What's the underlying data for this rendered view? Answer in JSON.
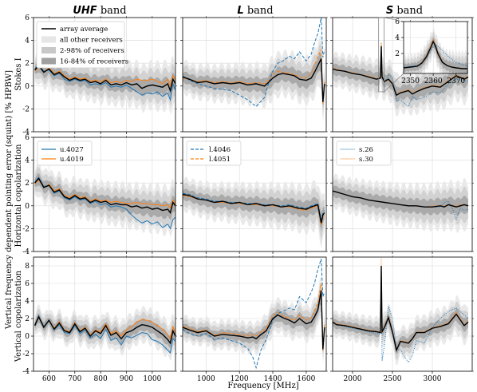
{
  "figure": {
    "ylabel_shared": "Vertical frequency dependent pointing error (squint) [% HPBW]",
    "xlabel": "Frequency [MHz]"
  },
  "chart_data": {
    "type": "line",
    "columns": [
      {
        "band_prefix": "UHF",
        "band_suffix": "band",
        "xlim": [
          540,
          1090
        ],
        "xticks": [
          600,
          700,
          800,
          900,
          1000
        ]
      },
      {
        "band_prefix": "L",
        "band_suffix": "band",
        "xlim": [
          860,
          1720
        ],
        "xticks": [
          1000,
          1200,
          1400,
          1600
        ]
      },
      {
        "band_prefix": "S",
        "band_suffix": "band",
        "xlim": [
          1750,
          3500
        ],
        "xticks": [
          2000,
          2500,
          3000
        ]
      }
    ],
    "rows": [
      {
        "ylabel": "Stokes I",
        "ylim": [
          -4,
          6
        ],
        "yticks": [
          -4,
          -2,
          0,
          2,
          4,
          6
        ]
      },
      {
        "ylabel": "Horizontal copolarization",
        "ylim": [
          -4,
          6
        ],
        "yticks": [
          -4,
          -2,
          0,
          2,
          4,
          6
        ]
      },
      {
        "ylabel": "Vertical copolarization",
        "ylim": [
          -4,
          9
        ],
        "yticks": [
          -4,
          -2,
          0,
          2,
          4,
          6,
          8
        ]
      }
    ],
    "legend_main": [
      {
        "label": "array average",
        "kind": "line",
        "color": "#000000"
      },
      {
        "label": "all other receivers",
        "kind": "patch",
        "color": "#e6e6e6"
      },
      {
        "label": "2-98% of receivers",
        "kind": "patch",
        "color": "#c8c8c8"
      },
      {
        "label": "16-84% of receivers",
        "kind": "patch",
        "color": "#a0a0a0"
      }
    ],
    "legend_receivers": [
      [
        {
          "label": "u.4027",
          "color": "#1f77b4",
          "dash": ""
        },
        {
          "label": "u.4019",
          "color": "#ff7f0e",
          "dash": ""
        }
      ],
      [
        {
          "label": "l.4046",
          "color": "#1f77b4",
          "dash": "4,2"
        },
        {
          "label": "l.4051",
          "color": "#ff7f0e",
          "dash": "4,2"
        }
      ],
      [
        {
          "label": "s.26",
          "color": "#1f77b4",
          "dash": "1,1.5"
        },
        {
          "label": "s.30",
          "color": "#ff7f0e",
          "dash": "1,1.5"
        }
      ]
    ],
    "inset": {
      "xlim": [
        2347,
        2375
      ],
      "ylim": [
        -0.5,
        6
      ],
      "xticks": [
        2350,
        2360,
        2370
      ],
      "yticks": [
        2,
        4,
        6
      ]
    },
    "series": {
      "UHF_StokesI": {
        "x": [
          545,
          560,
          580,
          600,
          620,
          640,
          660,
          680,
          700,
          720,
          740,
          760,
          780,
          800,
          820,
          840,
          860,
          880,
          900,
          920,
          940,
          960,
          980,
          1000,
          1020,
          1040,
          1060,
          1070,
          1080,
          1090
        ],
        "average": [
          1.4,
          1.8,
          1.2,
          1.5,
          1.0,
          1.2,
          0.8,
          0.5,
          0.7,
          0.5,
          0.6,
          0.3,
          0.4,
          0.2,
          0.5,
          0.1,
          0.2,
          0.1,
          0.3,
          0.1,
          0.2,
          -0.2,
          0.0,
          0.1,
          0.0,
          -0.1,
          0.2,
          -0.4,
          0.6,
          0.2
        ],
        "receiver_a": [
          1.5,
          1.9,
          1.3,
          1.4,
          0.9,
          1.1,
          0.6,
          0.4,
          0.6,
          0.4,
          0.5,
          0.1,
          0.2,
          0.1,
          0.3,
          -0.1,
          0.0,
          -0.1,
          0.1,
          -0.2,
          -0.5,
          -0.8,
          -0.6,
          -0.7,
          -0.5,
          -0.9,
          -0.6,
          -1.2,
          0.2,
          -0.4
        ],
        "receiver_b": [
          1.3,
          1.7,
          1.2,
          1.6,
          1.1,
          1.3,
          0.9,
          0.6,
          0.8,
          0.6,
          0.7,
          0.4,
          0.5,
          0.4,
          0.6,
          0.3,
          0.4,
          0.3,
          0.5,
          0.4,
          0.6,
          0.5,
          0.5,
          0.6,
          0.4,
          0.2,
          0.6,
          0.0,
          0.9,
          0.5
        ]
      },
      "L_StokesI": {
        "x": [
          860,
          900,
          950,
          1000,
          1050,
          1100,
          1150,
          1200,
          1250,
          1300,
          1350,
          1380,
          1400,
          1430,
          1460,
          1500,
          1530,
          1560,
          1600,
          1630,
          1650,
          1670,
          1690,
          1700,
          1710
        ],
        "average": [
          0.8,
          0.6,
          0.3,
          0.4,
          0.2,
          0.3,
          0.2,
          0.3,
          0.1,
          0.2,
          0.0,
          0.4,
          0.7,
          1.0,
          1.1,
          1.0,
          0.9,
          0.6,
          0.5,
          0.7,
          1.2,
          1.8,
          2.4,
          -1.4,
          0.2
        ],
        "receiver_a": [
          0.9,
          0.5,
          0.2,
          0.0,
          -0.2,
          -0.3,
          -0.4,
          -0.8,
          -1.2,
          -1.8,
          -1.0,
          0.5,
          1.3,
          2.0,
          2.2,
          2.6,
          2.4,
          3.0,
          2.2,
          2.8,
          3.8,
          4.6,
          6.0,
          2.5,
          3.2
        ],
        "receiver_b": [
          0.7,
          0.6,
          0.4,
          0.5,
          0.3,
          0.4,
          0.3,
          0.4,
          0.2,
          0.3,
          0.2,
          0.6,
          1.0,
          1.3,
          1.2,
          1.1,
          1.0,
          0.8,
          0.7,
          1.1,
          1.8,
          2.6,
          3.2,
          -1.6,
          0.4
        ]
      },
      "S_StokesI": {
        "x": [
          1750,
          1800,
          1900,
          2000,
          2100,
          2200,
          2300,
          2350,
          2360,
          2370,
          2400,
          2450,
          2500,
          2550,
          2600,
          2700,
          2750,
          2800,
          2900,
          3000,
          3100,
          3200,
          3300,
          3400,
          3450
        ],
        "average": [
          1.5,
          1.4,
          1.3,
          1.1,
          1.0,
          0.8,
          0.6,
          0.7,
          3.5,
          0.8,
          0.4,
          0.6,
          0.2,
          -0.8,
          -0.6,
          -0.4,
          -0.7,
          -0.5,
          -0.2,
          0.0,
          -0.1,
          0.4,
          0.9,
          0.6,
          0.8
        ],
        "receiver_a": [
          1.5,
          1.4,
          1.3,
          1.1,
          1.0,
          0.8,
          0.6,
          0.7,
          2.8,
          0.6,
          0.3,
          1.0,
          0.8,
          -1.3,
          -1.2,
          -1.8,
          -0.9,
          -1.2,
          -1.0,
          -0.5,
          -0.6,
          0.2,
          0.6,
          0.5,
          0.4
        ],
        "receiver_b": [
          1.6,
          1.5,
          1.3,
          1.2,
          1.0,
          0.9,
          0.7,
          0.8,
          3.8,
          0.9,
          0.5,
          0.5,
          0.1,
          -0.7,
          -0.5,
          -0.3,
          -0.5,
          -0.3,
          -0.1,
          0.1,
          0.0,
          0.6,
          1.0,
          0.7,
          0.9
        ]
      },
      "UHF_H": {
        "x": [
          545,
          560,
          580,
          600,
          620,
          640,
          660,
          680,
          700,
          720,
          740,
          760,
          780,
          800,
          820,
          840,
          860,
          880,
          900,
          920,
          940,
          960,
          980,
          1000,
          1020,
          1040,
          1060,
          1070,
          1080,
          1090
        ],
        "average": [
          2.0,
          2.4,
          1.6,
          1.8,
          1.2,
          1.4,
          0.8,
          0.6,
          0.9,
          0.6,
          0.7,
          0.3,
          0.5,
          0.3,
          0.4,
          0.1,
          0.2,
          0.1,
          0.1,
          -0.1,
          0.0,
          -0.2,
          -0.1,
          -0.3,
          -0.2,
          -0.4,
          -0.3,
          -0.6,
          0.3,
          0.0
        ],
        "receiver_a": [
          2.1,
          2.5,
          1.7,
          1.8,
          1.1,
          1.3,
          0.7,
          0.5,
          0.8,
          0.5,
          0.6,
          0.2,
          0.4,
          0.1,
          0.2,
          -0.1,
          0.0,
          -0.1,
          -0.3,
          -0.8,
          -1.2,
          -1.5,
          -1.3,
          -1.6,
          -1.4,
          -1.9,
          -1.6,
          -2.0,
          -1.2,
          -1.0
        ],
        "receiver_b": [
          1.9,
          2.3,
          1.6,
          1.9,
          1.3,
          1.5,
          0.9,
          0.7,
          1.0,
          0.7,
          0.8,
          0.4,
          0.6,
          0.4,
          0.5,
          0.3,
          0.4,
          0.3,
          0.2,
          0.2,
          0.3,
          0.2,
          0.2,
          0.1,
          0.1,
          0.0,
          0.1,
          -0.2,
          0.5,
          0.2
        ]
      },
      "L_H": {
        "x": [
          860,
          900,
          950,
          1000,
          1050,
          1100,
          1150,
          1200,
          1250,
          1300,
          1350,
          1400,
          1450,
          1500,
          1550,
          1600,
          1630,
          1650,
          1670,
          1690,
          1700,
          1710
        ],
        "average": [
          1.0,
          0.9,
          0.6,
          0.5,
          0.3,
          0.4,
          0.2,
          0.3,
          0.1,
          0.2,
          0.0,
          0.1,
          -0.1,
          0.0,
          -0.2,
          -0.3,
          -0.1,
          0.0,
          0.1,
          -1.5,
          -0.8,
          -0.6
        ],
        "receiver_a": [
          1.1,
          1.0,
          0.7,
          0.6,
          0.4,
          0.4,
          0.3,
          0.3,
          0.2,
          0.2,
          0.1,
          0.1,
          0.0,
          0.1,
          -0.1,
          -0.2,
          0.0,
          0.1,
          0.2,
          -1.2,
          -0.6,
          -0.4
        ],
        "receiver_b": [
          0.9,
          0.8,
          0.6,
          0.5,
          0.3,
          0.3,
          0.2,
          0.2,
          0.1,
          0.1,
          0.0,
          0.0,
          -0.1,
          -0.1,
          -0.3,
          -0.4,
          -0.2,
          -0.1,
          0.0,
          -1.7,
          -1.0,
          -0.8
        ]
      },
      "S_H": {
        "x": [
          1750,
          1800,
          1900,
          2000,
          2100,
          2200,
          2300,
          2400,
          2500,
          2600,
          2700,
          2800,
          2900,
          3000,
          3100,
          3150,
          3200,
          3250,
          3300,
          3350,
          3400,
          3450
        ],
        "average": [
          1.3,
          1.2,
          1.0,
          0.8,
          0.7,
          0.5,
          0.4,
          0.3,
          0.2,
          0.1,
          0.0,
          0.0,
          -0.1,
          -0.1,
          0.0,
          -0.1,
          0.1,
          0.0,
          -0.1,
          0.0,
          0.1,
          0.0
        ],
        "receiver_a": [
          1.3,
          1.2,
          1.0,
          0.8,
          0.7,
          0.5,
          0.4,
          0.3,
          0.2,
          0.1,
          0.0,
          0.0,
          -0.1,
          -0.1,
          -0.1,
          0.3,
          0.4,
          -0.2,
          -1.2,
          -0.2,
          -0.4,
          -0.3
        ],
        "receiver_b": [
          1.3,
          1.2,
          1.0,
          0.8,
          0.7,
          0.5,
          0.4,
          0.3,
          0.2,
          0.1,
          0.0,
          0.0,
          -0.1,
          0.0,
          0.0,
          0.0,
          0.1,
          0.1,
          0.0,
          0.1,
          0.1,
          0.0
        ]
      },
      "UHF_V": {
        "x": [
          545,
          560,
          580,
          600,
          620,
          640,
          660,
          680,
          700,
          720,
          740,
          760,
          780,
          800,
          820,
          840,
          860,
          880,
          900,
          920,
          940,
          960,
          980,
          1000,
          1020,
          1040,
          1060,
          1070,
          1080,
          1090
        ],
        "average": [
          1.2,
          2.2,
          1.0,
          1.8,
          0.8,
          1.5,
          0.6,
          0.4,
          1.4,
          0.5,
          0.9,
          0.0,
          0.6,
          0.3,
          1.2,
          0.1,
          0.4,
          -0.3,
          0.4,
          0.6,
          1.0,
          1.3,
          1.2,
          1.0,
          0.6,
          0.2,
          -0.4,
          -0.8,
          0.6,
          0.0
        ],
        "receiver_a": [
          1.3,
          2.3,
          1.1,
          1.8,
          0.7,
          1.3,
          0.4,
          0.3,
          1.2,
          0.3,
          0.7,
          -0.2,
          0.2,
          -0.3,
          0.8,
          -0.5,
          -0.2,
          -1.0,
          0.0,
          -0.2,
          0.1,
          0.4,
          0.3,
          -0.4,
          -0.6,
          -1.0,
          -1.6,
          -1.9,
          -0.3,
          -0.6
        ],
        "receiver_b": [
          1.2,
          2.1,
          1.0,
          1.8,
          0.9,
          1.6,
          0.7,
          0.5,
          1.5,
          0.6,
          1.0,
          0.1,
          0.7,
          0.5,
          1.4,
          0.3,
          0.6,
          0.0,
          0.7,
          1.1,
          1.6,
          1.9,
          1.8,
          1.6,
          1.2,
          0.8,
          0.2,
          -0.3,
          1.1,
          0.4
        ]
      },
      "L_V": {
        "x": [
          860,
          900,
          950,
          1000,
          1050,
          1100,
          1150,
          1200,
          1250,
          1280,
          1300,
          1330,
          1360,
          1400,
          1430,
          1460,
          1500,
          1530,
          1560,
          1600,
          1630,
          1650,
          1670,
          1690,
          1700,
          1710
        ],
        "average": [
          1.0,
          0.7,
          0.4,
          0.6,
          0.0,
          0.2,
          0.1,
          0.0,
          -0.2,
          -0.1,
          -0.3,
          0.2,
          0.6,
          2.0,
          2.4,
          2.1,
          1.8,
          1.5,
          2.0,
          1.4,
          1.6,
          2.2,
          3.0,
          5.2,
          -1.5,
          1.0
        ],
        "receiver_a": [
          0.8,
          0.3,
          0.0,
          0.3,
          -0.4,
          -0.2,
          -0.5,
          -0.8,
          -1.4,
          -2.4,
          -3.6,
          -1.5,
          -0.4,
          1.8,
          2.6,
          2.8,
          3.2,
          3.0,
          4.5,
          3.8,
          5.0,
          6.0,
          7.6,
          8.8,
          4.5,
          5.0
        ],
        "receiver_b": [
          1.1,
          0.9,
          0.5,
          0.7,
          0.1,
          0.4,
          0.3,
          0.2,
          0.0,
          0.2,
          0.0,
          0.5,
          0.8,
          2.3,
          2.7,
          2.3,
          2.0,
          1.8,
          2.4,
          1.8,
          2.1,
          2.9,
          3.8,
          6.0,
          -1.7,
          1.5
        ]
      },
      "S_V": {
        "x": [
          1750,
          1800,
          1900,
          2000,
          2100,
          2200,
          2300,
          2350,
          2360,
          2370,
          2400,
          2450,
          2500,
          2550,
          2600,
          2700,
          2750,
          2800,
          2900,
          3000,
          3100,
          3200,
          3300,
          3400,
          3450
        ],
        "average": [
          1.6,
          1.3,
          1.2,
          1.0,
          0.8,
          0.6,
          0.5,
          0.4,
          8.0,
          0.5,
          1.0,
          2.1,
          0.5,
          -1.6,
          -0.6,
          -0.8,
          -0.3,
          0.4,
          0.4,
          0.9,
          1.1,
          1.4,
          2.5,
          1.2,
          1.6
        ],
        "receiver_a": [
          1.5,
          1.3,
          1.1,
          0.9,
          0.7,
          0.5,
          0.3,
          0.2,
          6.0,
          -2.8,
          -1.0,
          3.4,
          2.0,
          -1.4,
          -1.6,
          -3.0,
          -2.2,
          -0.5,
          -0.8,
          1.0,
          2.0,
          2.8,
          3.2,
          2.4,
          2.0
        ],
        "receiver_b": [
          1.7,
          1.4,
          1.3,
          1.1,
          0.9,
          0.7,
          0.6,
          0.5,
          9.0,
          0.7,
          1.2,
          2.3,
          0.6,
          -1.7,
          -0.5,
          -0.7,
          -0.2,
          0.5,
          0.5,
          1.0,
          1.2,
          1.5,
          2.8,
          1.3,
          1.8
        ]
      },
      "S_inset": {
        "x": [
          2347,
          2350,
          2353,
          2355,
          2357,
          2359,
          2360,
          2361,
          2362,
          2364,
          2366,
          2368,
          2370,
          2373,
          2375
        ],
        "average": [
          0.2,
          0.3,
          0.4,
          0.8,
          1.6,
          2.8,
          3.5,
          2.9,
          2.0,
          0.9,
          0.5,
          0.3,
          0.2,
          0.1,
          0.1
        ],
        "receiver_a": [
          0.3,
          0.4,
          0.5,
          0.8,
          1.4,
          2.4,
          2.8,
          3.0,
          2.9,
          2.4,
          1.8,
          1.3,
          0.9,
          0.6,
          0.4
        ],
        "receiver_b": [
          0.2,
          0.3,
          0.4,
          0.9,
          1.8,
          3.2,
          3.8,
          3.1,
          2.2,
          1.0,
          0.5,
          0.3,
          0.2,
          0.1,
          0.1
        ]
      }
    }
  }
}
